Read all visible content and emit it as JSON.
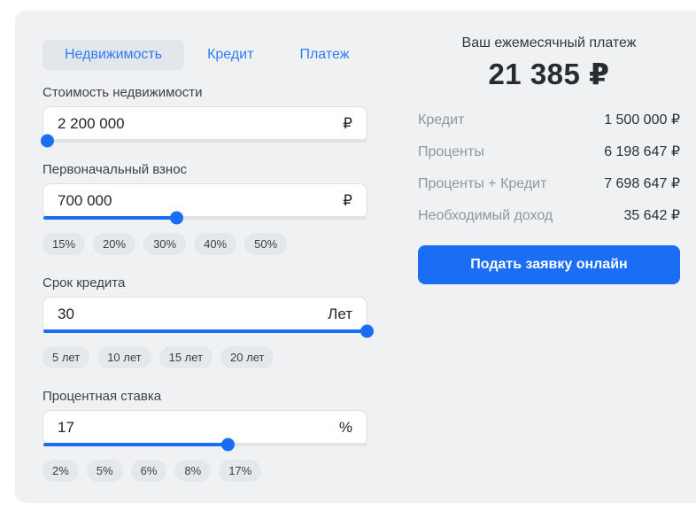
{
  "tabs": [
    {
      "label": "Недвижимость",
      "active": true
    },
    {
      "label": "Кредит",
      "active": false
    },
    {
      "label": "Платеж",
      "active": false
    }
  ],
  "form": {
    "fields": [
      {
        "label": "Стоимость недвижимости",
        "value": "2 200 000",
        "suffix": "₽",
        "slider_percent": 1,
        "chips": []
      },
      {
        "label": "Первоначальный взнос",
        "value": "700 000",
        "suffix": "₽",
        "slider_percent": 41,
        "chips": [
          "15%",
          "20%",
          "30%",
          "40%",
          "50%"
        ]
      },
      {
        "label": "Срок кредита",
        "value": "30",
        "suffix": "Лет",
        "slider_percent": 100,
        "chips": [
          "5 лет",
          "10 лет",
          "15 лет",
          "20 лет"
        ]
      },
      {
        "label": "Процентная ставка",
        "value": "17",
        "suffix": "%",
        "slider_percent": 57,
        "chips": [
          "2%",
          "5%",
          "6%",
          "8%",
          "17%"
        ]
      }
    ]
  },
  "result": {
    "title": "Ваш ежемесячный платеж",
    "monthly_payment": "21 385 ₽",
    "rows": [
      {
        "label": "Кредит",
        "value": "1 500 000 ₽"
      },
      {
        "label": "Проценты",
        "value": "6 198 647 ₽"
      },
      {
        "label": "Проценты + Кредит",
        "value": "7 698 647 ₽"
      },
      {
        "label": "Необходимый доход",
        "value": "35 642 ₽"
      }
    ],
    "cta_label": "Подать заявку онлайн"
  },
  "colors": {
    "accent_blue": "#1b6ef3",
    "tab_blue": "#2f7cf6",
    "card_background": "#eff1f3"
  }
}
